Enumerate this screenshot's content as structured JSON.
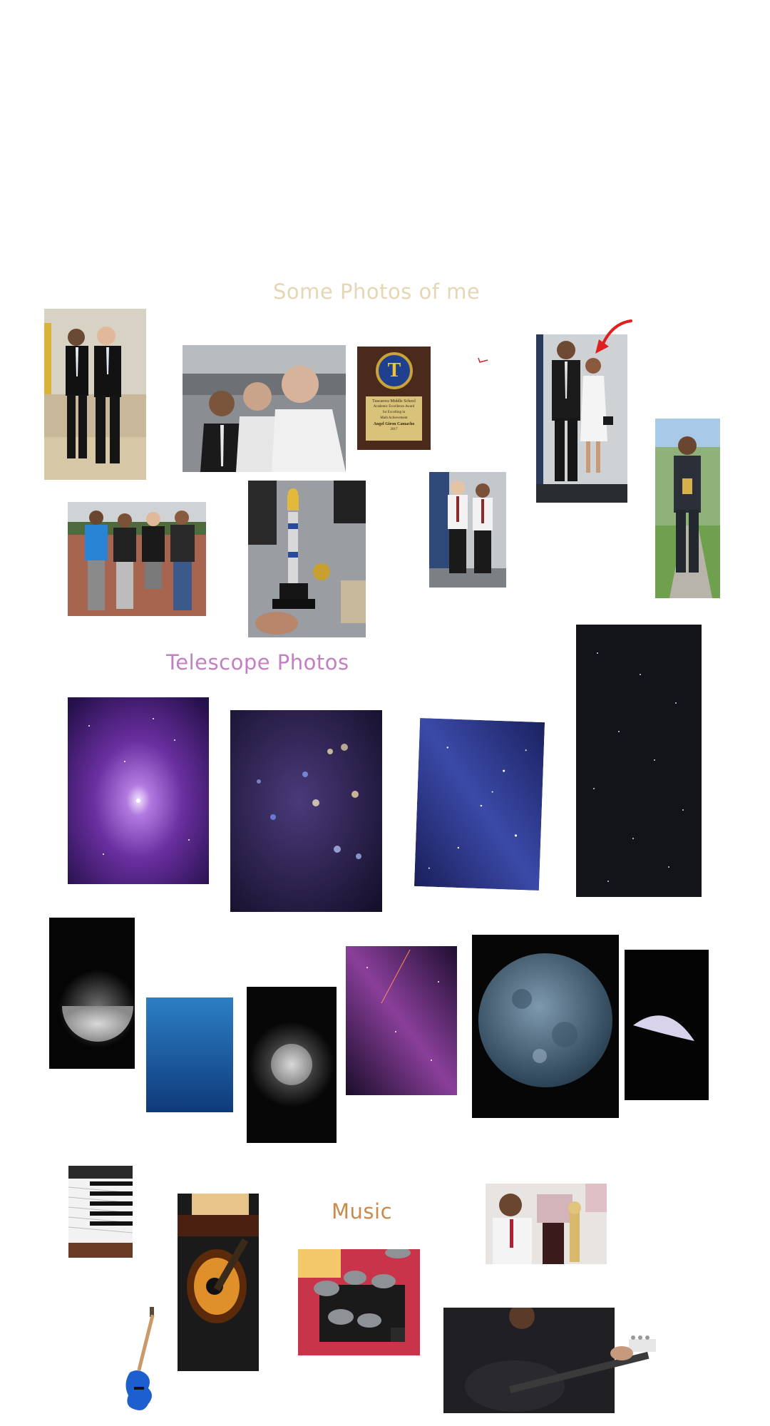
{
  "sections": {
    "photos_of_me": {
      "title": "Some Photos of me",
      "color": "#e6d6b3"
    },
    "telescope": {
      "title": "Telescope Photos",
      "color": "#c47fc4"
    },
    "music": {
      "title": "Music",
      "color": "#c98a4b"
    }
  },
  "award_plaque": {
    "letter": "T",
    "line1": "Tuscarora Middle School",
    "line2": "Academic Excellence Award",
    "line3": "for Excelling in",
    "line4": "Math Achievement",
    "name": "Angel Giron Camacho",
    "year": "2017"
  },
  "accent_colors": {
    "annotation_red": "#e02020",
    "space_purple": "#6a2fa0",
    "moon_blue": "#4a6a85",
    "guitar_blue": "#1e5fd0"
  }
}
